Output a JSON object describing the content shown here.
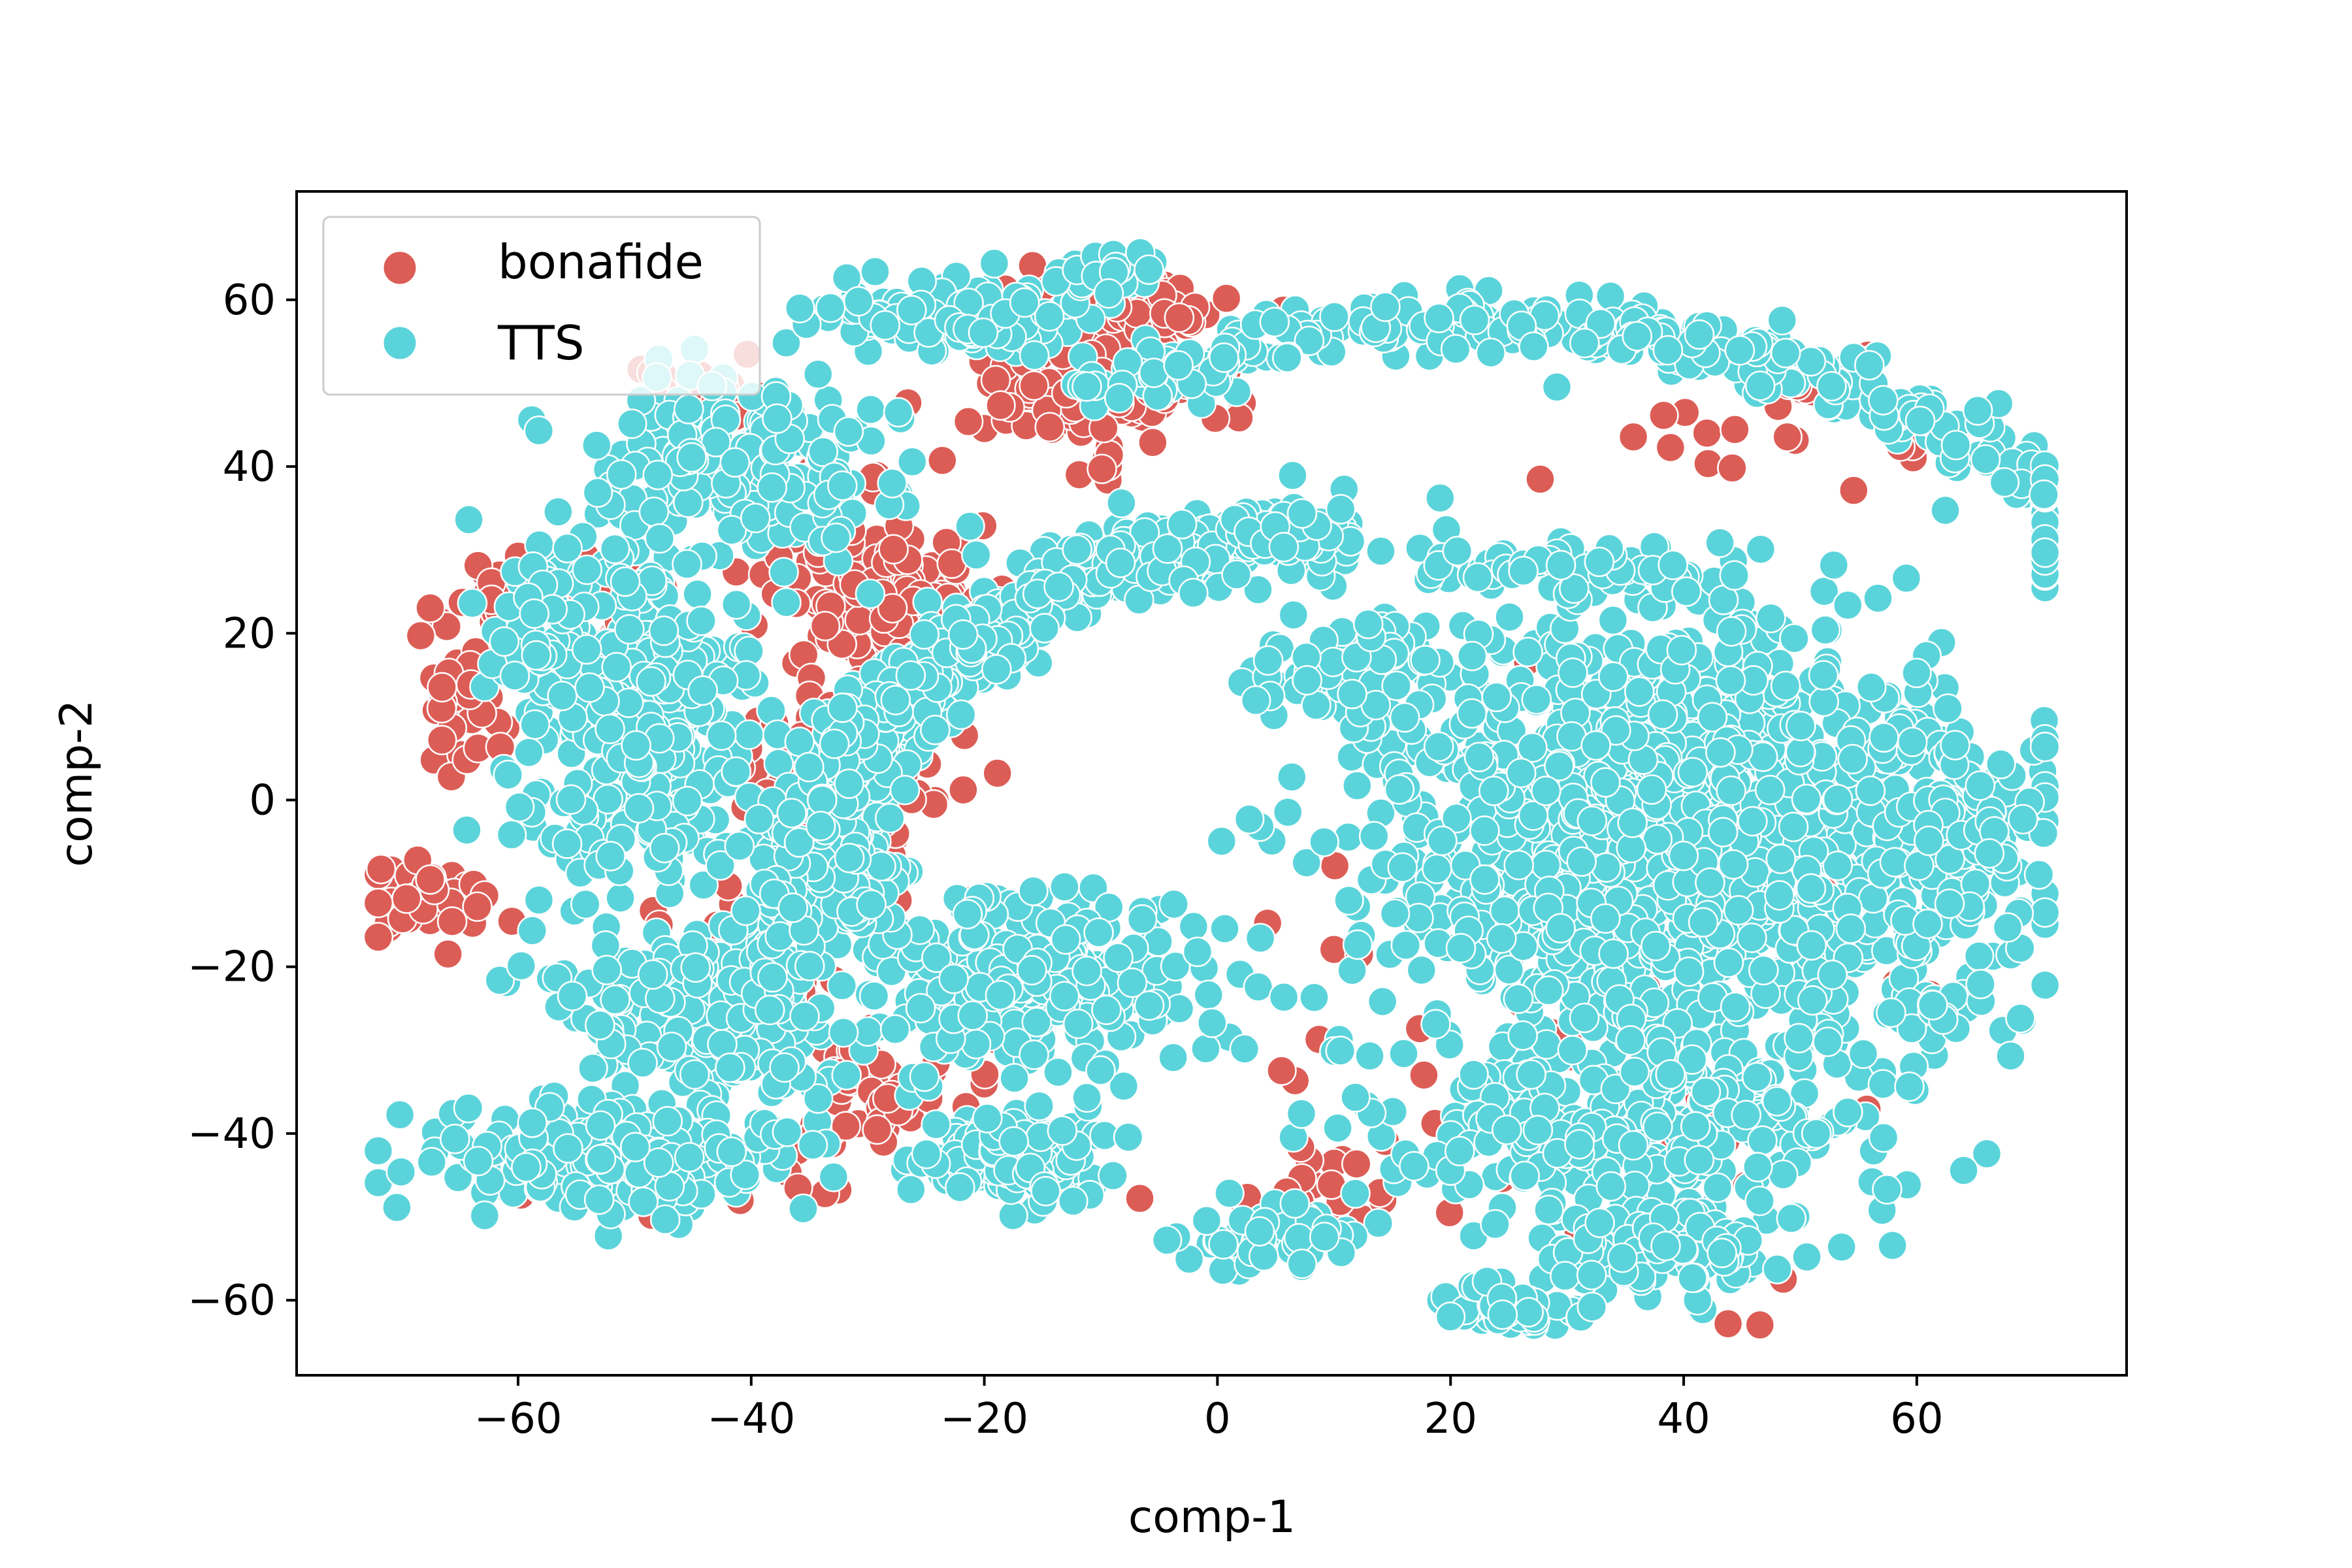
{
  "chart_data": {
    "type": "scatter",
    "title": "",
    "xlabel": "comp-1",
    "ylabel": "comp-2",
    "xlim": [
      -79,
      78
    ],
    "ylim": [
      -69,
      73
    ],
    "xticks": [
      -60,
      -40,
      -20,
      0,
      20,
      40,
      60
    ],
    "yticks": [
      -60,
      -40,
      -20,
      0,
      20,
      40,
      60
    ],
    "xtick_labels": [
      "−60",
      "−40",
      "−20",
      "0",
      "20",
      "40",
      "60"
    ],
    "ytick_labels": [
      "−60",
      "−40",
      "−20",
      "0",
      "20",
      "40",
      "60"
    ],
    "grid": false,
    "legend_position": "top-left",
    "marker_edge_color": "#ffffff",
    "series": [
      {
        "name": "bonafide",
        "color": "#dc5d56",
        "clusters": [
          {
            "cx": -45,
            "cy": 48,
            "sx": 4,
            "sy": 3,
            "n": 30
          },
          {
            "cx": -12,
            "cy": 52,
            "sx": 8,
            "sy": 7,
            "n": 170
          },
          {
            "cx": -30,
            "cy": 25,
            "sx": 6,
            "sy": 7,
            "n": 150
          },
          {
            "cx": -32,
            "cy": 0,
            "sx": 6,
            "sy": 8,
            "n": 150
          },
          {
            "cx": -58,
            "cy": 25,
            "sx": 6,
            "sy": 4,
            "n": 60
          },
          {
            "cx": -65,
            "cy": 12,
            "sx": 3,
            "sy": 8,
            "n": 40
          },
          {
            "cx": -68,
            "cy": -12,
            "sx": 4,
            "sy": 3,
            "n": 40
          },
          {
            "cx": -40,
            "cy": -25,
            "sx": 8,
            "sy": 6,
            "n": 60
          },
          {
            "cx": -28,
            "cy": -35,
            "sx": 5,
            "sy": 4,
            "n": 50
          },
          {
            "cx": -48,
            "cy": -45,
            "sx": 10,
            "sy": 5,
            "n": 30
          },
          {
            "cx": -5,
            "cy": 58,
            "sx": 3,
            "sy": 3,
            "n": 25
          },
          {
            "cx": 50,
            "cy": 50,
            "sx": 2,
            "sy": 2,
            "n": 12
          },
          {
            "cx": 60,
            "cy": 42,
            "sx": 2,
            "sy": 2,
            "n": 8
          },
          {
            "cx": 45,
            "cy": 45,
            "sx": 10,
            "sy": 10,
            "n": 15
          },
          {
            "cx": 30,
            "cy": -30,
            "sx": 20,
            "sy": 20,
            "n": 60
          },
          {
            "cx": 10,
            "cy": -45,
            "sx": 6,
            "sy": 6,
            "n": 20
          }
        ]
      },
      {
        "name": "TTS",
        "color": "#5ad4da",
        "clusters": [
          {
            "cx": -40,
            "cy": 40,
            "sx": 8,
            "sy": 7,
            "n": 220
          },
          {
            "cx": -22,
            "cy": 58,
            "sx": 8,
            "sy": 3,
            "n": 130
          },
          {
            "cx": -10,
            "cy": 63,
            "sx": 3,
            "sy": 2,
            "n": 30
          },
          {
            "cx": -50,
            "cy": 10,
            "sx": 7,
            "sy": 14,
            "n": 420
          },
          {
            "cx": -58,
            "cy": 20,
            "sx": 3,
            "sy": 6,
            "n": 60
          },
          {
            "cx": -44,
            "cy": -25,
            "sx": 9,
            "sy": 7,
            "n": 220
          },
          {
            "cx": -50,
            "cy": -43,
            "sx": 10,
            "sy": 4,
            "n": 260
          },
          {
            "cx": -18,
            "cy": -43,
            "sx": 5,
            "sy": 3,
            "n": 170
          },
          {
            "cx": -15,
            "cy": -22,
            "sx": 10,
            "sy": 7,
            "n": 260
          },
          {
            "cx": 5,
            "cy": -52,
            "sx": 5,
            "sy": 3,
            "n": 50
          },
          {
            "cx": 40,
            "cy": -5,
            "sx": 18,
            "sy": 17,
            "n": 1400
          },
          {
            "cx": 35,
            "cy": -40,
            "sx": 14,
            "sy": 7,
            "n": 300
          },
          {
            "cx": 38,
            "cy": -54,
            "sx": 7,
            "sy": 3,
            "n": 110
          },
          {
            "cx": 25,
            "cy": -61,
            "sx": 5,
            "sy": 2,
            "n": 40
          },
          {
            "cx": 30,
            "cy": 28,
            "sx": 9,
            "sy": 2,
            "n": 60
          },
          {
            "cx": 65,
            "cy": -5,
            "sx": 4,
            "sy": 8,
            "n": 80
          },
          {
            "cx": 12,
            "cy": 15,
            "sx": 5,
            "sy": 5,
            "n": 70
          },
          {
            "cx": 62,
            "cy": -25,
            "sx": 2,
            "sy": 2,
            "n": 15
          },
          {
            "cx": -36,
            "cy": -34,
            "sx": 2,
            "sy": 2,
            "n": 10
          }
        ],
        "arcs": [
          {
            "cx": 8,
            "cy": -8,
            "r": 40,
            "a0": 85,
            "a1": 190,
            "w": 3.5,
            "n": 560
          },
          {
            "cx": 22,
            "cy": -18,
            "r": 60,
            "a0": 148,
            "a1": 188,
            "w": 3,
            "n": 120
          },
          {
            "cx": 22,
            "cy": -15,
            "r": 72,
            "a0": 35,
            "a1": 118,
            "w": 3,
            "n": 400
          }
        ]
      }
    ]
  },
  "legend": {
    "items": [
      {
        "label": "bonafide",
        "color": "#dc5d56"
      },
      {
        "label": "TTS",
        "color": "#5ad4da"
      }
    ]
  }
}
